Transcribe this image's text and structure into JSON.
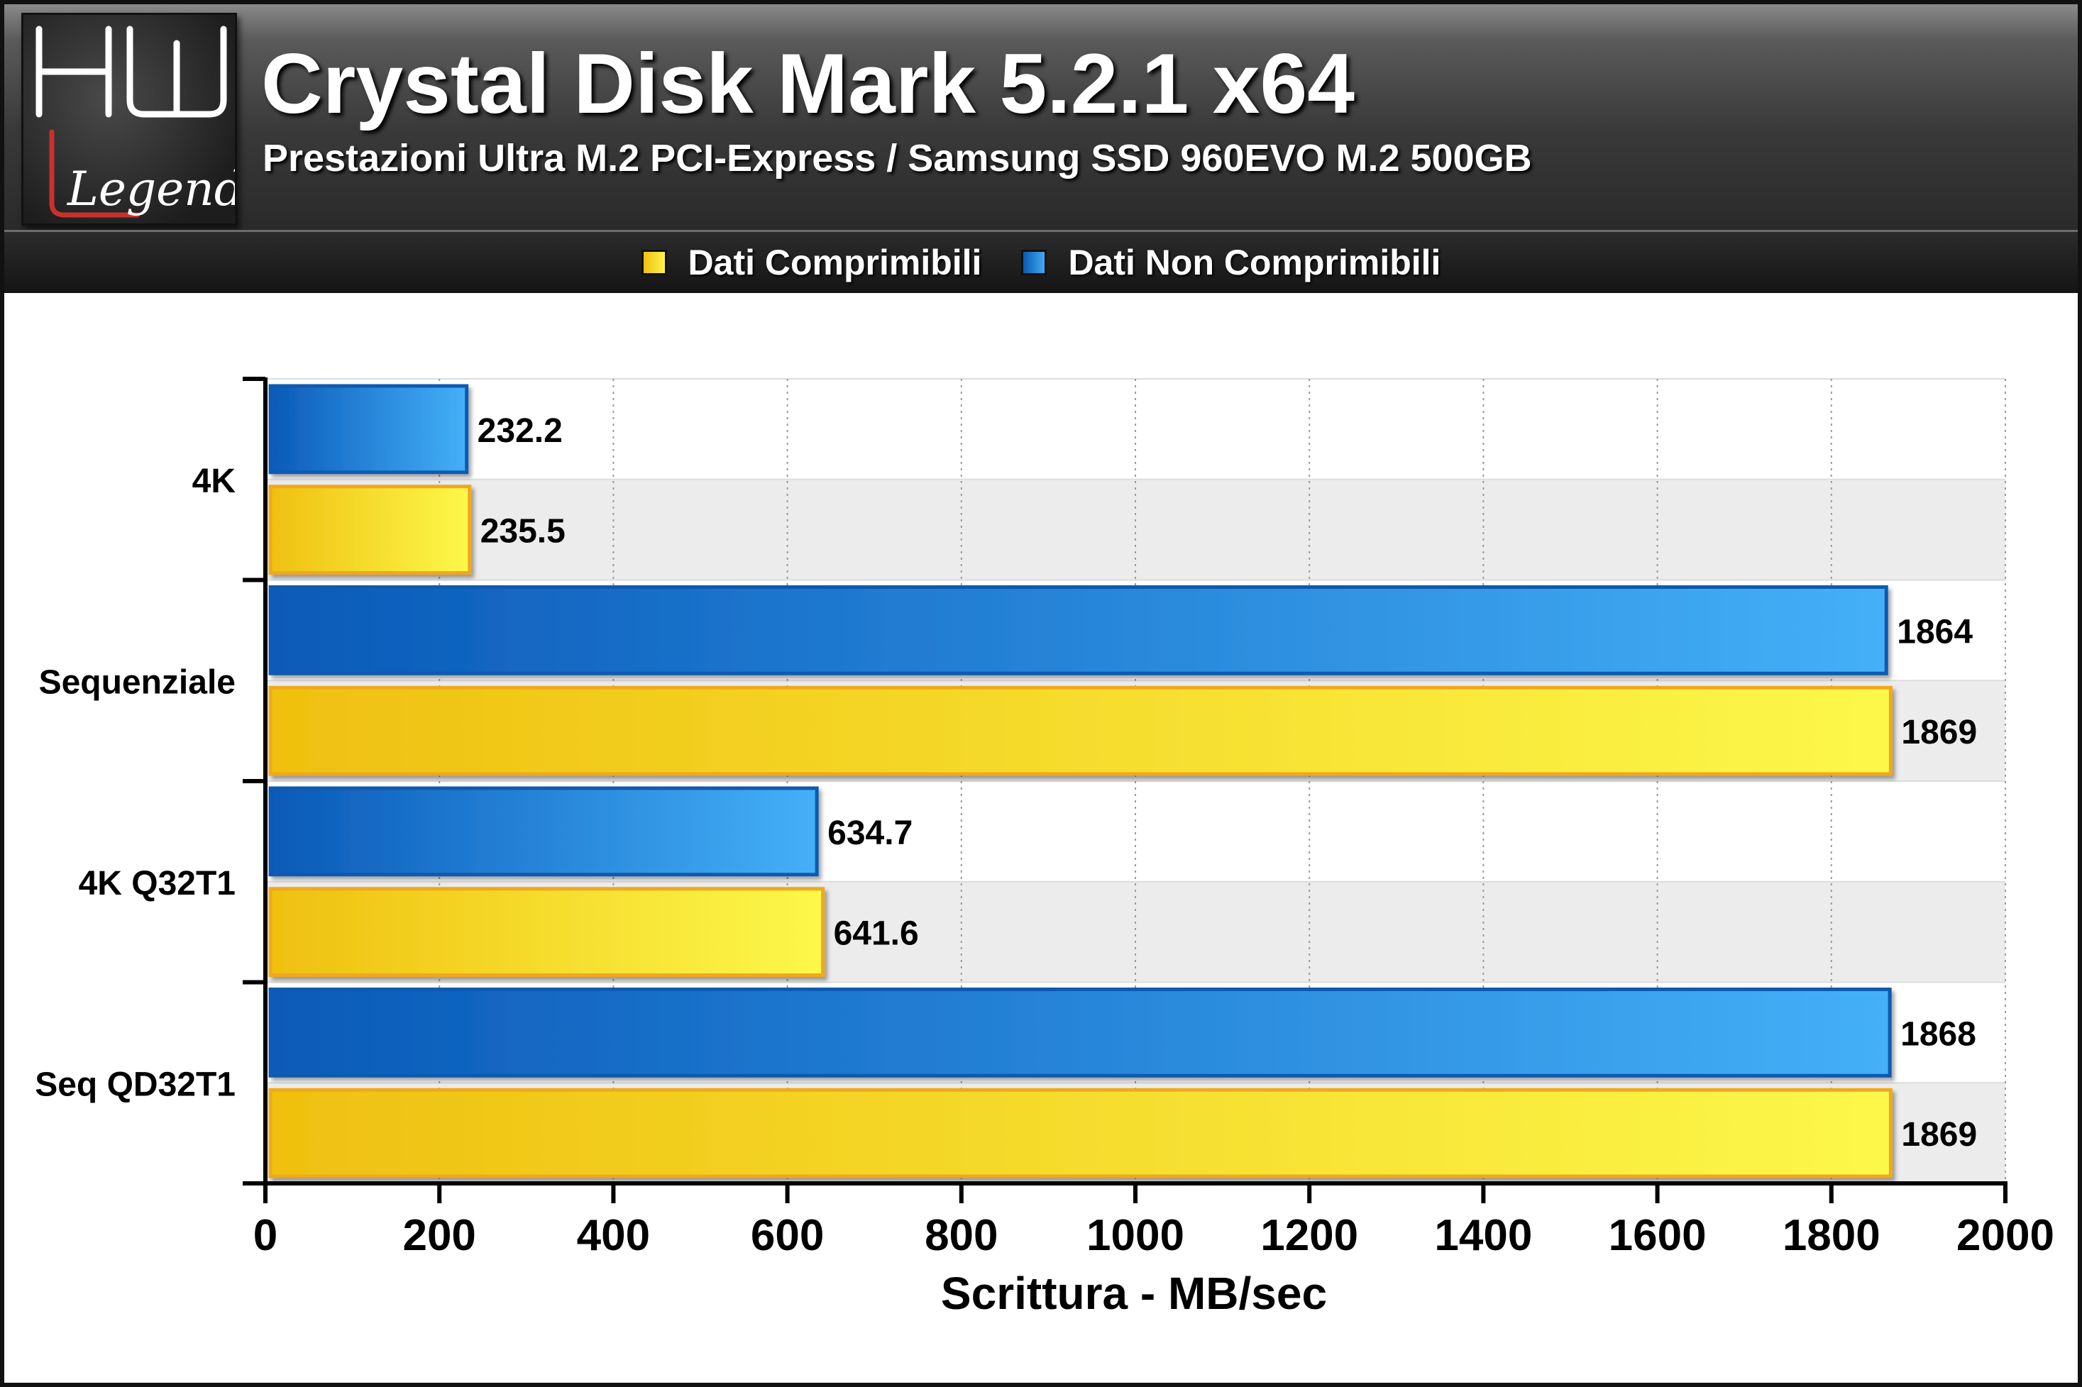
{
  "header": {
    "title": "Crystal Disk Mark 5.2.1 x64",
    "subtitle": "Prestazioni Ultra M.2 PCI-Express / Samsung SSD 960EVO M.2 500GB",
    "logo_text_top": "HW",
    "logo_text_bottom": "Legend"
  },
  "colors": {
    "compressible": "#f5d21c",
    "compressible_edge": "#f0a81a",
    "incompressible": "#2a8ae0",
    "incompressible_edge": "#0a5ab0",
    "band": "#ececec",
    "logo_red": "#c8322a"
  },
  "chart_data": {
    "type": "bar",
    "orientation": "horizontal",
    "categories": [
      "4K",
      "Sequenziale",
      "4K Q32T1",
      "Seq QD32T1"
    ],
    "series": [
      {
        "name": "Dati Non Comprimibili",
        "values": [
          232.2,
          1864,
          634.7,
          1868
        ]
      },
      {
        "name": "Dati Comprimibili",
        "values": [
          235.5,
          1869,
          641.6,
          1869
        ]
      }
    ],
    "value_labels": [
      [
        "232.2",
        "1864",
        "634.7",
        "1868"
      ],
      [
        "235.5",
        "1869",
        "641.6",
        "1869"
      ]
    ],
    "legend": [
      "Dati Comprimibili",
      "Dati Non Comprimibili"
    ],
    "legend_position": "top-center",
    "xlabel": "Scrittura - MB/sec",
    "xlim": [
      0,
      2000
    ],
    "xticks": [
      0,
      200,
      400,
      600,
      800,
      1000,
      1200,
      1400,
      1600,
      1800,
      2000
    ],
    "grid": "vertical-dotted"
  }
}
